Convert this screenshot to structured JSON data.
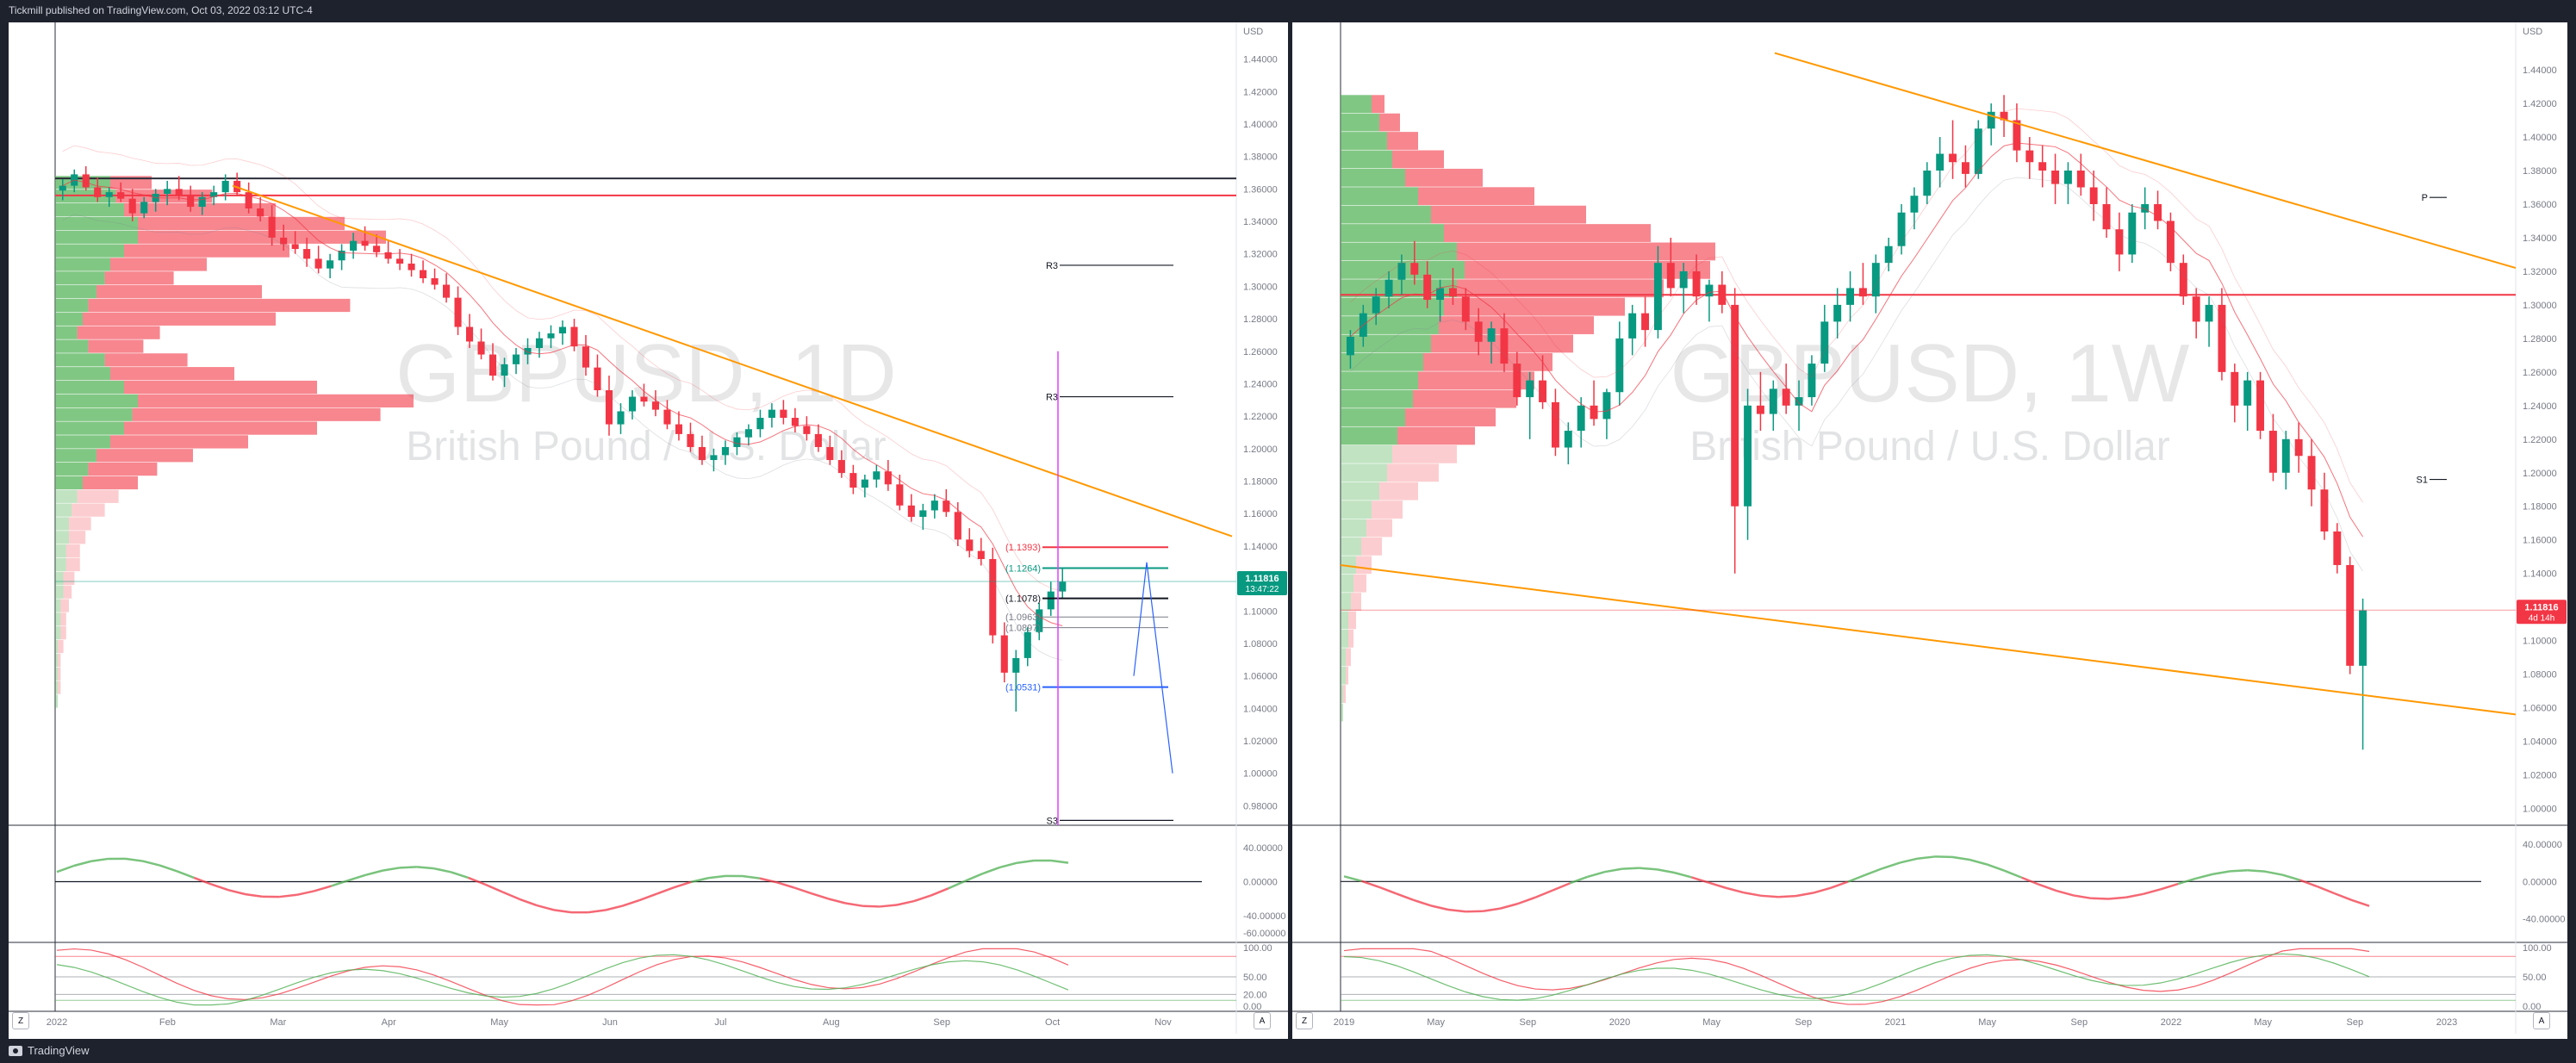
{
  "header": {
    "published_text": "Tickmill published on TradingView.com, Oct 03, 2022 03:12 UTC-4"
  },
  "footer": {
    "brand": "TradingView"
  },
  "left_chart": {
    "watermark_symbol": "GBPUSD, 1D",
    "watermark_name": "British Pound / U.S. Dollar",
    "currency": "USD",
    "price_ticks": [
      "1.44000",
      "1.42000",
      "1.40000",
      "1.38000",
      "1.36000",
      "1.34000",
      "1.32000",
      "1.30000",
      "1.28000",
      "1.26000",
      "1.24000",
      "1.22000",
      "1.20000",
      "1.18000",
      "1.16000",
      "1.14000",
      "1.12000",
      "1.10000",
      "1.08000",
      "1.06000",
      "1.04000",
      "1.02000",
      "1.00000",
      "0.98000"
    ],
    "price_range": [
      0.968,
      1.452
    ],
    "last_price": "1.11816",
    "countdown": "13:47:22",
    "last_price_value": 1.11816,
    "time_labels": [
      "2022",
      "Feb",
      "Mar",
      "Apr",
      "May",
      "Jun",
      "Jul",
      "Aug",
      "Sep",
      "Oct",
      "Nov"
    ],
    "pivot_labels": [
      {
        "text": "R3",
        "price": 1.313
      },
      {
        "text": "R3",
        "price": 1.232
      },
      {
        "text": "S3",
        "price": 0.971
      }
    ],
    "fib_labels": [
      {
        "text": "(1.1393)",
        "price": 1.1393
      },
      {
        "text": "(1.1264)",
        "price": 1.1264
      },
      {
        "text": "(1.1078)",
        "price": 1.1078
      },
      {
        "text": "(1.0963)",
        "price": 1.0963
      },
      {
        "text": "(1.0897)",
        "price": 1.0897
      },
      {
        "text": "(1.0531)",
        "price": 1.0531
      }
    ],
    "level_lines": [
      {
        "price": 1.3665,
        "color": "#2a2e39"
      },
      {
        "price": 1.356,
        "color": "#f23645"
      }
    ],
    "rsi_ticks": [
      "40.00000",
      "0.00000",
      "-40.00000",
      "-60.00000"
    ],
    "rsi_range": [
      -65,
      60
    ],
    "stoch_ticks": [
      "100.00",
      "50.00",
      "20.00",
      "0.00"
    ],
    "candles": [
      [
        1.359,
        1.366,
        1.353,
        1.362
      ],
      [
        1.362,
        1.372,
        1.358,
        1.369
      ],
      [
        1.369,
        1.374,
        1.359,
        1.361
      ],
      [
        1.361,
        1.367,
        1.352,
        1.355
      ],
      [
        1.355,
        1.361,
        1.349,
        1.358
      ],
      [
        1.358,
        1.364,
        1.352,
        1.354
      ],
      [
        1.354,
        1.36,
        1.34,
        1.345
      ],
      [
        1.345,
        1.355,
        1.342,
        1.352
      ],
      [
        1.352,
        1.36,
        1.346,
        1.357
      ],
      [
        1.357,
        1.365,
        1.35,
        1.36
      ],
      [
        1.36,
        1.368,
        1.353,
        1.356
      ],
      [
        1.356,
        1.362,
        1.346,
        1.349
      ],
      [
        1.349,
        1.358,
        1.344,
        1.355
      ],
      [
        1.355,
        1.362,
        1.35,
        1.358
      ],
      [
        1.358,
        1.369,
        1.353,
        1.365
      ],
      [
        1.365,
        1.37,
        1.356,
        1.358
      ],
      [
        1.358,
        1.364,
        1.345,
        1.348
      ],
      [
        1.348,
        1.355,
        1.34,
        1.343
      ],
      [
        1.343,
        1.35,
        1.325,
        1.33
      ],
      [
        1.33,
        1.338,
        1.322,
        1.326
      ],
      [
        1.326,
        1.334,
        1.32,
        1.323
      ],
      [
        1.323,
        1.33,
        1.312,
        1.317
      ],
      [
        1.317,
        1.325,
        1.308,
        1.311
      ],
      [
        1.311,
        1.32,
        1.305,
        1.316
      ],
      [
        1.316,
        1.326,
        1.31,
        1.322
      ],
      [
        1.322,
        1.333,
        1.317,
        1.328
      ],
      [
        1.328,
        1.337,
        1.322,
        1.325
      ],
      [
        1.325,
        1.332,
        1.318,
        1.321
      ],
      [
        1.321,
        1.328,
        1.314,
        1.317
      ],
      [
        1.317,
        1.323,
        1.31,
        1.314
      ],
      [
        1.314,
        1.32,
        1.306,
        1.31
      ],
      [
        1.31,
        1.316,
        1.302,
        1.305
      ],
      [
        1.305,
        1.311,
        1.298,
        1.301
      ],
      [
        1.301,
        1.308,
        1.29,
        1.293
      ],
      [
        1.293,
        1.3,
        1.27,
        1.275
      ],
      [
        1.275,
        1.283,
        1.262,
        1.266
      ],
      [
        1.266,
        1.274,
        1.255,
        1.258
      ],
      [
        1.258,
        1.265,
        1.242,
        1.245
      ],
      [
        1.245,
        1.256,
        1.238,
        1.252
      ],
      [
        1.252,
        1.262,
        1.246,
        1.258
      ],
      [
        1.258,
        1.268,
        1.252,
        1.262
      ],
      [
        1.262,
        1.272,
        1.256,
        1.268
      ],
      [
        1.268,
        1.276,
        1.262,
        1.271
      ],
      [
        1.271,
        1.279,
        1.264,
        1.275
      ],
      [
        1.275,
        1.28,
        1.26,
        1.263
      ],
      [
        1.263,
        1.27,
        1.245,
        1.25
      ],
      [
        1.25,
        1.258,
        1.232,
        1.236
      ],
      [
        1.236,
        1.245,
        1.208,
        1.215
      ],
      [
        1.215,
        1.228,
        1.209,
        1.223
      ],
      [
        1.223,
        1.236,
        1.218,
        1.232
      ],
      [
        1.232,
        1.24,
        1.226,
        1.229
      ],
      [
        1.229,
        1.236,
        1.22,
        1.224
      ],
      [
        1.224,
        1.23,
        1.212,
        1.215
      ],
      [
        1.215,
        1.223,
        1.205,
        1.209
      ],
      [
        1.209,
        1.216,
        1.198,
        1.201
      ],
      [
        1.201,
        1.208,
        1.19,
        1.193
      ],
      [
        1.193,
        1.2,
        1.186,
        1.196
      ],
      [
        1.196,
        1.205,
        1.19,
        1.201
      ],
      [
        1.201,
        1.21,
        1.196,
        1.207
      ],
      [
        1.207,
        1.215,
        1.202,
        1.212
      ],
      [
        1.212,
        1.224,
        1.207,
        1.219
      ],
      [
        1.219,
        1.228,
        1.213,
        1.224
      ],
      [
        1.224,
        1.23,
        1.215,
        1.219
      ],
      [
        1.219,
        1.225,
        1.21,
        1.214
      ],
      [
        1.214,
        1.22,
        1.205,
        1.209
      ],
      [
        1.209,
        1.215,
        1.198,
        1.201
      ],
      [
        1.201,
        1.208,
        1.19,
        1.193
      ],
      [
        1.193,
        1.199,
        1.182,
        1.185
      ],
      [
        1.185,
        1.19,
        1.172,
        1.176
      ],
      [
        1.176,
        1.184,
        1.17,
        1.181
      ],
      [
        1.181,
        1.19,
        1.176,
        1.186
      ],
      [
        1.186,
        1.193,
        1.174,
        1.178
      ],
      [
        1.178,
        1.184,
        1.162,
        1.165
      ],
      [
        1.165,
        1.172,
        1.155,
        1.158
      ],
      [
        1.158,
        1.166,
        1.15,
        1.162
      ],
      [
        1.162,
        1.172,
        1.157,
        1.168
      ],
      [
        1.168,
        1.175,
        1.158,
        1.161
      ],
      [
        1.161,
        1.167,
        1.14,
        1.144
      ],
      [
        1.144,
        1.151,
        1.133,
        1.137
      ],
      [
        1.137,
        1.145,
        1.128,
        1.132
      ],
      [
        1.132,
        1.139,
        1.08,
        1.085
      ],
      [
        1.085,
        1.093,
        1.056,
        1.062
      ],
      [
        1.062,
        1.076,
        1.038,
        1.071
      ],
      [
        1.071,
        1.09,
        1.066,
        1.087
      ],
      [
        1.087,
        1.105,
        1.082,
        1.101
      ],
      [
        1.101,
        1.118,
        1.097,
        1.112
      ],
      [
        1.112,
        1.126,
        1.108,
        1.118
      ]
    ],
    "profile": [
      [
        0.2,
        0.15
      ],
      [
        0.22,
        0.35
      ],
      [
        0.25,
        0.55
      ],
      [
        0.3,
        0.75
      ],
      [
        0.3,
        0.9
      ],
      [
        0.25,
        0.6
      ],
      [
        0.2,
        0.35
      ],
      [
        0.18,
        0.25
      ],
      [
        0.15,
        0.6
      ],
      [
        0.12,
        0.95
      ],
      [
        0.1,
        0.7
      ],
      [
        0.08,
        0.3
      ],
      [
        0.12,
        0.2
      ],
      [
        0.18,
        0.3
      ],
      [
        0.2,
        0.45
      ],
      [
        0.25,
        0.7
      ],
      [
        0.3,
        1.0
      ],
      [
        0.28,
        0.9
      ],
      [
        0.25,
        0.7
      ],
      [
        0.2,
        0.5
      ],
      [
        0.15,
        0.35
      ],
      [
        0.12,
        0.25
      ],
      [
        0.1,
        0.2
      ],
      [
        0.08,
        0.15
      ],
      [
        0.06,
        0.12
      ],
      [
        0.05,
        0.08
      ],
      [
        0.05,
        0.06
      ],
      [
        0.04,
        0.05
      ],
      [
        0.04,
        0.05
      ],
      [
        0.03,
        0.04
      ],
      [
        0.03,
        0.03
      ],
      [
        0.02,
        0.03
      ],
      [
        0.02,
        0.02
      ],
      [
        0.02,
        0.02
      ],
      [
        0.01,
        0.02
      ],
      [
        0.01,
        0.01
      ],
      [
        0.01,
        0.01
      ],
      [
        0.01,
        0.01
      ],
      [
        0.01,
        0.0
      ],
      [
        0.0,
        0.0
      ]
    ],
    "profile_top": 1.368
  },
  "right_chart": {
    "watermark_symbol": "GBPUSD, 1W",
    "watermark_name": "British Pound / U.S. Dollar",
    "currency": "USD",
    "price_ticks": [
      "1.44000",
      "1.42000",
      "1.40000",
      "1.38000",
      "1.36000",
      "1.34000",
      "1.32000",
      "1.30000",
      "1.28000",
      "1.26000",
      "1.24000",
      "1.22000",
      "1.20000",
      "1.18000",
      "1.16000",
      "1.14000",
      "1.12000",
      "1.10000",
      "1.08000",
      "1.06000",
      "1.04000",
      "1.02000",
      "1.00000"
    ],
    "price_range": [
      0.99,
      1.458
    ],
    "last_price": "1.11816",
    "countdown": "4d 14h",
    "last_price_value": 1.11816,
    "time_labels": [
      "2019",
      "May",
      "Sep",
      "2020",
      "May",
      "Sep",
      "2021",
      "May",
      "Sep",
      "2022",
      "May",
      "Sep",
      "2023"
    ],
    "pivot_labels": [
      {
        "text": "P",
        "price": 1.364
      },
      {
        "text": "S1",
        "price": 1.196
      }
    ],
    "level_lines": [
      {
        "price": 1.306,
        "color": "#f23645"
      }
    ],
    "rsi_ticks": [
      "40.00000",
      "0.00000",
      "-40.00000"
    ],
    "rsi_range": [
      -60,
      55
    ],
    "stoch_ticks": [
      "100.00",
      "50.00",
      "0.00"
    ],
    "candles": [
      [
        1.27,
        1.285,
        1.262,
        1.281
      ],
      [
        1.281,
        1.3,
        1.275,
        1.295
      ],
      [
        1.295,
        1.31,
        1.288,
        1.305
      ],
      [
        1.305,
        1.32,
        1.298,
        1.315
      ],
      [
        1.315,
        1.33,
        1.306,
        1.325
      ],
      [
        1.325,
        1.338,
        1.312,
        1.318
      ],
      [
        1.318,
        1.326,
        1.298,
        1.303
      ],
      [
        1.303,
        1.315,
        1.29,
        1.31
      ],
      [
        1.31,
        1.322,
        1.3,
        1.305
      ],
      [
        1.305,
        1.31,
        1.285,
        1.29
      ],
      [
        1.29,
        1.298,
        1.27,
        1.278
      ],
      [
        1.278,
        1.29,
        1.265,
        1.286
      ],
      [
        1.286,
        1.295,
        1.26,
        1.265
      ],
      [
        1.265,
        1.272,
        1.24,
        1.245
      ],
      [
        1.245,
        1.26,
        1.22,
        1.255
      ],
      [
        1.255,
        1.27,
        1.238,
        1.242
      ],
      [
        1.242,
        1.25,
        1.21,
        1.215
      ],
      [
        1.215,
        1.23,
        1.205,
        1.225
      ],
      [
        1.225,
        1.245,
        1.215,
        1.24
      ],
      [
        1.24,
        1.255,
        1.228,
        1.232
      ],
      [
        1.232,
        1.25,
        1.22,
        1.248
      ],
      [
        1.248,
        1.29,
        1.24,
        1.28
      ],
      [
        1.28,
        1.3,
        1.27,
        1.295
      ],
      [
        1.295,
        1.305,
        1.275,
        1.285
      ],
      [
        1.285,
        1.335,
        1.28,
        1.325
      ],
      [
        1.325,
        1.34,
        1.305,
        1.31
      ],
      [
        1.31,
        1.325,
        1.295,
        1.32
      ],
      [
        1.32,
        1.33,
        1.3,
        1.305
      ],
      [
        1.305,
        1.315,
        1.29,
        1.312
      ],
      [
        1.312,
        1.32,
        1.295,
        1.3
      ],
      [
        1.3,
        1.31,
        1.14,
        1.18
      ],
      [
        1.18,
        1.25,
        1.16,
        1.24
      ],
      [
        1.24,
        1.26,
        1.225,
        1.235
      ],
      [
        1.235,
        1.255,
        1.225,
        1.25
      ],
      [
        1.25,
        1.265,
        1.235,
        1.24
      ],
      [
        1.24,
        1.255,
        1.225,
        1.245
      ],
      [
        1.245,
        1.27,
        1.24,
        1.265
      ],
      [
        1.265,
        1.3,
        1.26,
        1.29
      ],
      [
        1.29,
        1.31,
        1.28,
        1.3
      ],
      [
        1.3,
        1.32,
        1.29,
        1.31
      ],
      [
        1.31,
        1.325,
        1.3,
        1.305
      ],
      [
        1.305,
        1.33,
        1.295,
        1.325
      ],
      [
        1.325,
        1.34,
        1.32,
        1.335
      ],
      [
        1.335,
        1.36,
        1.33,
        1.355
      ],
      [
        1.355,
        1.37,
        1.345,
        1.365
      ],
      [
        1.365,
        1.385,
        1.36,
        1.38
      ],
      [
        1.38,
        1.4,
        1.37,
        1.39
      ],
      [
        1.39,
        1.41,
        1.375,
        1.385
      ],
      [
        1.385,
        1.395,
        1.37,
        1.378
      ],
      [
        1.378,
        1.41,
        1.375,
        1.405
      ],
      [
        1.405,
        1.42,
        1.395,
        1.415
      ],
      [
        1.415,
        1.425,
        1.4,
        1.41
      ],
      [
        1.41,
        1.42,
        1.385,
        1.392
      ],
      [
        1.392,
        1.4,
        1.375,
        1.385
      ],
      [
        1.385,
        1.395,
        1.37,
        1.38
      ],
      [
        1.38,
        1.39,
        1.36,
        1.372
      ],
      [
        1.372,
        1.385,
        1.36,
        1.38
      ],
      [
        1.38,
        1.39,
        1.365,
        1.37
      ],
      [
        1.37,
        1.38,
        1.35,
        1.36
      ],
      [
        1.36,
        1.37,
        1.34,
        1.345
      ],
      [
        1.345,
        1.355,
        1.32,
        1.33
      ],
      [
        1.33,
        1.36,
        1.325,
        1.355
      ],
      [
        1.355,
        1.37,
        1.345,
        1.36
      ],
      [
        1.36,
        1.368,
        1.345,
        1.35
      ],
      [
        1.35,
        1.355,
        1.32,
        1.325
      ],
      [
        1.325,
        1.33,
        1.3,
        1.305
      ],
      [
        1.305,
        1.31,
        1.28,
        1.29
      ],
      [
        1.29,
        1.305,
        1.275,
        1.3
      ],
      [
        1.3,
        1.31,
        1.255,
        1.26
      ],
      [
        1.26,
        1.265,
        1.23,
        1.24
      ],
      [
        1.24,
        1.26,
        1.225,
        1.255
      ],
      [
        1.255,
        1.26,
        1.22,
        1.225
      ],
      [
        1.225,
        1.235,
        1.195,
        1.2
      ],
      [
        1.2,
        1.225,
        1.19,
        1.22
      ],
      [
        1.22,
        1.23,
        1.2,
        1.21
      ],
      [
        1.21,
        1.22,
        1.18,
        1.19
      ],
      [
        1.19,
        1.2,
        1.16,
        1.165
      ],
      [
        1.165,
        1.17,
        1.14,
        1.145
      ],
      [
        1.145,
        1.15,
        1.08,
        1.085
      ],
      [
        1.085,
        1.125,
        1.035,
        1.118
      ]
    ],
    "profile": [
      [
        0.12,
        0.05
      ],
      [
        0.15,
        0.08
      ],
      [
        0.18,
        0.12
      ],
      [
        0.2,
        0.2
      ],
      [
        0.25,
        0.3
      ],
      [
        0.3,
        0.45
      ],
      [
        0.35,
        0.6
      ],
      [
        0.4,
        0.8
      ],
      [
        0.45,
        1.0
      ],
      [
        0.48,
        0.95
      ],
      [
        0.45,
        0.8
      ],
      [
        0.4,
        0.7
      ],
      [
        0.38,
        0.6
      ],
      [
        0.35,
        0.55
      ],
      [
        0.32,
        0.5
      ],
      [
        0.3,
        0.45
      ],
      [
        0.28,
        0.4
      ],
      [
        0.25,
        0.35
      ],
      [
        0.22,
        0.3
      ],
      [
        0.2,
        0.25
      ],
      [
        0.18,
        0.2
      ],
      [
        0.15,
        0.15
      ],
      [
        0.12,
        0.12
      ],
      [
        0.1,
        0.1
      ],
      [
        0.08,
        0.08
      ],
      [
        0.06,
        0.06
      ],
      [
        0.05,
        0.05
      ],
      [
        0.04,
        0.04
      ],
      [
        0.03,
        0.03
      ],
      [
        0.03,
        0.02
      ],
      [
        0.02,
        0.02
      ],
      [
        0.02,
        0.01
      ],
      [
        0.01,
        0.01
      ],
      [
        0.01,
        0.0
      ]
    ],
    "profile_top": 1.425
  }
}
